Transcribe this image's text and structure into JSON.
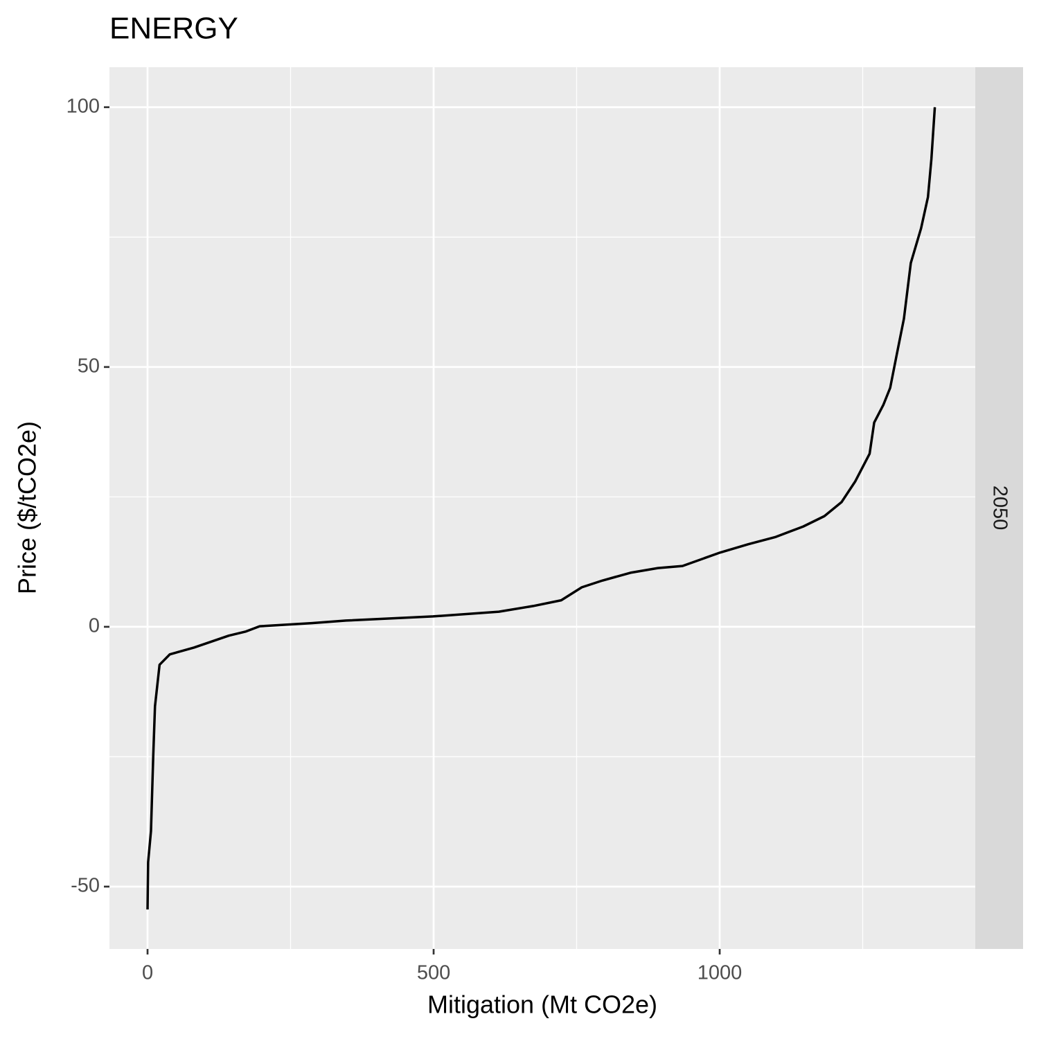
{
  "chart_data": {
    "type": "line",
    "title": "ENERGY",
    "x_label": "Mitigation (Mt CO2e)",
    "y_label": "Price ($/tCO2e)",
    "facet_label": "2050",
    "x": [
      0,
      1,
      6,
      10,
      13,
      21,
      39,
      81,
      142,
      172,
      196,
      287,
      347,
      499,
      614,
      674,
      723,
      759,
      795,
      844,
      892,
      935,
      1001,
      1050,
      1098,
      1146,
      1183,
      1213,
      1237,
      1262,
      1270,
      1286,
      1298,
      1310,
      1322,
      1334,
      1352,
      1364,
      1370,
      1376
    ],
    "values": [
      -54.4,
      -45.3,
      -39.3,
      -24.7,
      -15.3,
      -7.3,
      -5.3,
      -4,
      -1.7,
      -0.9,
      0.1,
      0.7,
      1.2,
      2,
      2.9,
      4,
      5.1,
      7.6,
      8.9,
      10.4,
      11.3,
      11.7,
      14.3,
      15.9,
      17.3,
      19.3,
      21.3,
      24,
      28,
      33.3,
      39.3,
      42.7,
      46,
      52.7,
      59.3,
      70,
      76.7,
      82.7,
      90,
      100
    ],
    "color": "#000000",
    "xlim": [
      -66.6,
      1446.7
    ],
    "ylim": [
      -62,
      107.7
    ],
    "xticks": [
      0,
      500,
      1000
    ],
    "yticks": [
      -50,
      0,
      50,
      100
    ],
    "x_minor_grid": [
      250,
      750,
      1250
    ],
    "y_minor_grid": [
      -25,
      25,
      75
    ],
    "grid": true
  }
}
